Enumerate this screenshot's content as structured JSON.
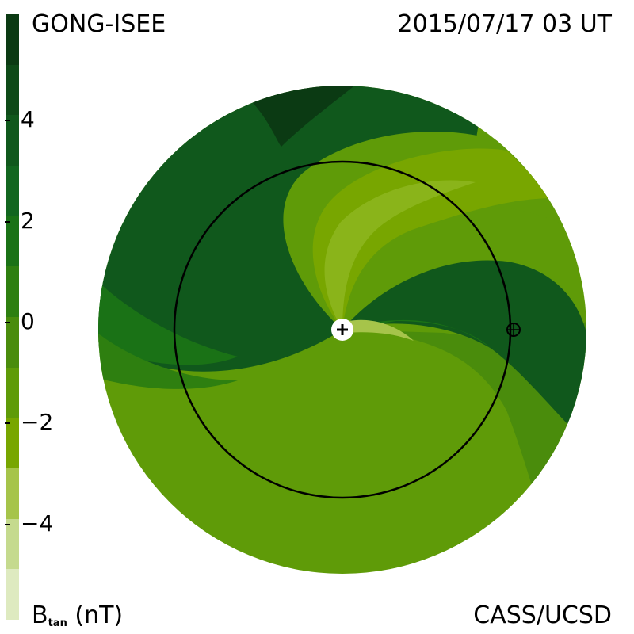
{
  "header": {
    "source": "GONG-ISEE",
    "datetime": "2015/07/17 03 UT"
  },
  "footer": {
    "quantity": "B",
    "quantity_sub": "tan",
    "unit": "(nT)",
    "credit": "CASS/UCSD"
  },
  "colorbar": {
    "ticks": [
      "4",
      "2",
      "0",
      "−2",
      "−4"
    ],
    "tick_values": [
      4,
      2,
      0,
      -2,
      -4
    ],
    "range": [
      -6,
      6
    ],
    "colors": [
      "#0b3a13",
      "#0e4a18",
      "#10581c",
      "#12661f",
      "#1a7216",
      "#2e7f10",
      "#4a8c0c",
      "#5f9b08",
      "#78a600",
      "#a6c44a",
      "#c5da8e",
      "#deeac0"
    ]
  },
  "chart_data": {
    "type": "heatmap",
    "title": "2015/07/17 03 UT",
    "colorbar_label": "B tan (nT)",
    "colorbar_ticks": [
      4,
      2,
      0,
      -2,
      -4
    ],
    "zmin": -6,
    "zmax": 6,
    "regions": [
      {
        "value": 4.5,
        "color": "#0b3a13"
      },
      {
        "value": 3,
        "color": "#10581c"
      },
      {
        "value": 1.5,
        "color": "#1a7216"
      },
      {
        "value": 0.5,
        "color": "#2e7f10"
      },
      {
        "value": -0.5,
        "color": "#4a8c0c"
      },
      {
        "value": -1.5,
        "color": "#5f9b08"
      },
      {
        "value": -2.5,
        "color": "#78a600"
      },
      {
        "value": -3.5,
        "color": "#8ab41a"
      }
    ],
    "markers": [
      "sun",
      "earth"
    ]
  }
}
